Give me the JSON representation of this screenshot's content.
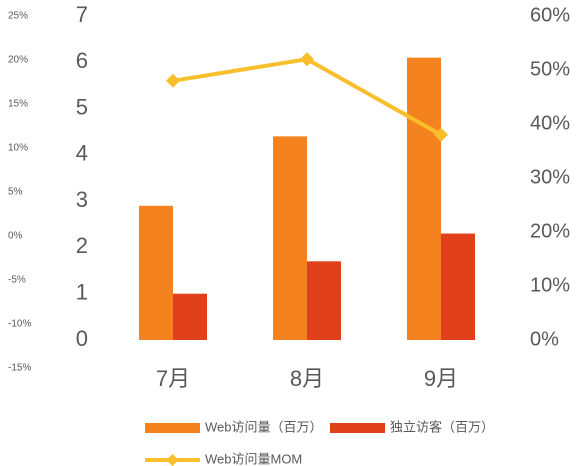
{
  "chart_data": {
    "type": "bar",
    "categories": [
      "7月",
      "8月",
      "9月"
    ],
    "series": [
      {
        "name": "Web访问量（百万）",
        "color": "#f4831f",
        "values": [
          2.9,
          4.4,
          6.1
        ]
      },
      {
        "name": "独立访客（百万）",
        "color": "#e0401a",
        "values": [
          1.0,
          1.7,
          2.3
        ]
      },
      {
        "name": "Web访问量MOM",
        "color": "#f9be2b",
        "type": "line",
        "axis": "y2",
        "values": [
          48,
          52,
          38
        ]
      }
    ],
    "ylim": [
      0,
      7
    ],
    "yticks": [
      0,
      1,
      2,
      3,
      4,
      5,
      6,
      7
    ],
    "y2lim": [
      0,
      60
    ],
    "y2ticks": [
      {
        "value": 0,
        "label": "0%"
      },
      {
        "value": 10,
        "label": "10%"
      },
      {
        "value": 20,
        "label": "20%"
      },
      {
        "value": 30,
        "label": "30%"
      },
      {
        "value": 40,
        "label": "40%"
      },
      {
        "value": 50,
        "label": "50%"
      },
      {
        "value": 60,
        "label": "60%"
      }
    ],
    "y3lim": [
      -15,
      25
    ],
    "y3ticks": [
      {
        "value": -15,
        "label": "-15%"
      },
      {
        "value": -10,
        "label": "-10%"
      },
      {
        "value": -5,
        "label": "-5%"
      },
      {
        "value": 0,
        "label": "0%"
      },
      {
        "value": 5,
        "label": "5%"
      },
      {
        "value": 10,
        "label": "10%"
      },
      {
        "value": 15,
        "label": "15%"
      },
      {
        "value": 20,
        "label": "20%"
      },
      {
        "value": 25,
        "label": "25%"
      }
    ],
    "grid": false,
    "legend": "bottom"
  }
}
